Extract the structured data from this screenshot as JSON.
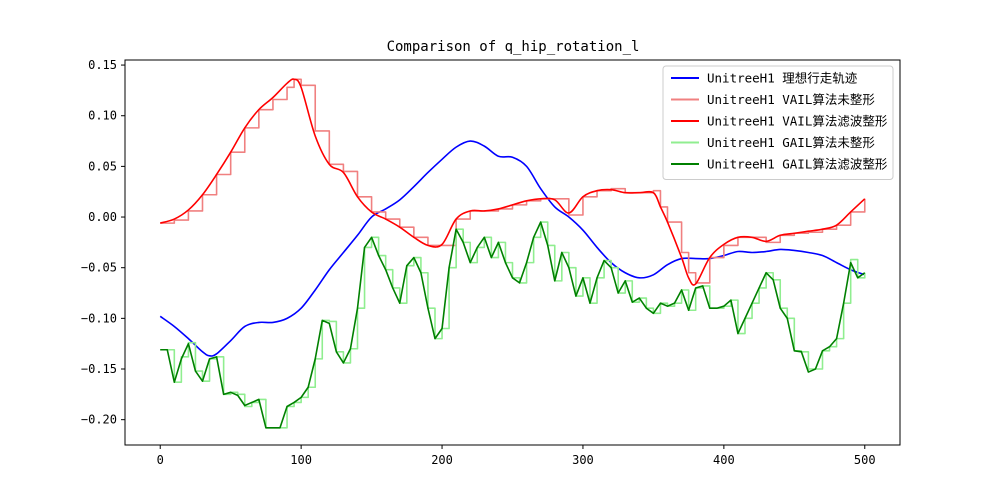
{
  "chart_data": {
    "type": "line",
    "title": "Comparison of q_hip_rotation_l",
    "xlabel": "",
    "ylabel": "",
    "xlim": [
      -25,
      525
    ],
    "ylim": [
      -0.225,
      0.155
    ],
    "xticks": [
      0,
      100,
      200,
      300,
      400,
      500
    ],
    "yticks": [
      0.15,
      0.1,
      0.05,
      0.0,
      -0.05,
      -0.1,
      -0.15,
      -0.2
    ],
    "ytick_labels": [
      "0.15",
      "0.10",
      "0.05",
      "0.00",
      "−0.05",
      "−0.10",
      "−0.15",
      "−0.20"
    ],
    "grid": false,
    "legend_position": "top-right",
    "series": [
      {
        "name": "UnitreeH1 理想行走轨迹",
        "color": "#0000ff",
        "style": "smooth",
        "x": [
          0,
          10,
          20,
          30,
          35,
          40,
          50,
          60,
          70,
          80,
          90,
          100,
          110,
          120,
          130,
          140,
          150,
          160,
          170,
          180,
          190,
          200,
          210,
          220,
          230,
          240,
          250,
          260,
          270,
          280,
          290,
          300,
          310,
          320,
          330,
          340,
          350,
          360,
          370,
          380,
          390,
          400,
          410,
          420,
          430,
          440,
          450,
          460,
          470,
          480,
          490,
          500
        ],
        "y": [
          -0.098,
          -0.108,
          -0.12,
          -0.133,
          -0.137,
          -0.135,
          -0.122,
          -0.108,
          -0.104,
          -0.104,
          -0.1,
          -0.09,
          -0.072,
          -0.052,
          -0.035,
          -0.018,
          0.0,
          0.008,
          0.017,
          0.03,
          0.044,
          0.057,
          0.069,
          0.075,
          0.07,
          0.06,
          0.059,
          0.05,
          0.028,
          0.01,
          0.0,
          -0.013,
          -0.03,
          -0.045,
          -0.055,
          -0.06,
          -0.057,
          -0.047,
          -0.041,
          -0.041,
          -0.041,
          -0.038,
          -0.034,
          -0.035,
          -0.034,
          -0.032,
          -0.033,
          -0.035,
          -0.038,
          -0.045,
          -0.052,
          -0.057
        ]
      },
      {
        "name": "UnitreeH1 VAIL算法未整形",
        "color": "#f08080",
        "style": "steps",
        "x": [
          0,
          10,
          20,
          30,
          40,
          50,
          60,
          70,
          80,
          90,
          95,
          100,
          110,
          120,
          130,
          140,
          150,
          160,
          170,
          180,
          190,
          200,
          210,
          220,
          230,
          240,
          250,
          260,
          270,
          280,
          290,
          300,
          310,
          320,
          330,
          340,
          350,
          355,
          360,
          370,
          375,
          380,
          390,
          400,
          410,
          420,
          430,
          440,
          450,
          460,
          470,
          480,
          490,
          500
        ],
        "y": [
          -0.006,
          -0.003,
          0.006,
          0.022,
          0.042,
          0.064,
          0.088,
          0.106,
          0.116,
          0.128,
          0.136,
          0.13,
          0.085,
          0.052,
          0.045,
          0.02,
          0.005,
          -0.002,
          -0.01,
          -0.02,
          -0.028,
          -0.028,
          -0.002,
          0.006,
          0.006,
          0.008,
          0.012,
          0.016,
          0.018,
          0.018,
          0.002,
          0.02,
          0.026,
          0.028,
          0.024,
          0.024,
          0.026,
          0.01,
          -0.005,
          -0.035,
          -0.055,
          -0.065,
          -0.04,
          -0.028,
          -0.02,
          -0.02,
          -0.025,
          -0.018,
          -0.016,
          -0.015,
          -0.012,
          -0.008,
          0.005,
          0.018
        ]
      },
      {
        "name": "UnitreeH1 VAIL算法滤波整形",
        "color": "#ff0000",
        "style": "smooth",
        "x": [
          0,
          10,
          20,
          30,
          40,
          50,
          60,
          70,
          80,
          90,
          95,
          100,
          110,
          120,
          130,
          140,
          150,
          160,
          170,
          180,
          190,
          200,
          210,
          220,
          230,
          240,
          250,
          260,
          270,
          280,
          290,
          300,
          310,
          320,
          330,
          340,
          350,
          355,
          360,
          370,
          375,
          380,
          390,
          400,
          410,
          420,
          430,
          440,
          450,
          460,
          470,
          480,
          490,
          500
        ],
        "y": [
          -0.006,
          -0.002,
          0.007,
          0.022,
          0.042,
          0.064,
          0.088,
          0.106,
          0.118,
          0.132,
          0.136,
          0.128,
          0.08,
          0.052,
          0.044,
          0.02,
          0.005,
          -0.002,
          -0.01,
          -0.02,
          -0.028,
          -0.027,
          -0.002,
          0.006,
          0.006,
          0.008,
          0.012,
          0.016,
          0.018,
          0.017,
          0.004,
          0.02,
          0.026,
          0.027,
          0.024,
          0.024,
          0.024,
          0.01,
          -0.005,
          -0.04,
          -0.06,
          -0.066,
          -0.04,
          -0.027,
          -0.02,
          -0.02,
          -0.024,
          -0.018,
          -0.016,
          -0.014,
          -0.012,
          -0.008,
          0.005,
          0.018
        ]
      },
      {
        "name": "UnitreeH1 GAIL算法未整形",
        "color": "#90ee90",
        "style": "steps",
        "x": [
          0,
          5,
          10,
          15,
          20,
          25,
          30,
          35,
          40,
          45,
          50,
          55,
          60,
          65,
          70,
          75,
          80,
          85,
          90,
          95,
          100,
          105,
          110,
          115,
          120,
          125,
          130,
          135,
          140,
          145,
          150,
          155,
          160,
          165,
          170,
          175,
          180,
          185,
          190,
          195,
          200,
          205,
          210,
          215,
          220,
          225,
          230,
          235,
          240,
          245,
          250,
          255,
          260,
          265,
          270,
          275,
          280,
          285,
          290,
          295,
          300,
          305,
          310,
          315,
          320,
          325,
          330,
          335,
          340,
          345,
          350,
          355,
          360,
          365,
          370,
          375,
          380,
          385,
          390,
          395,
          400,
          405,
          410,
          415,
          420,
          425,
          430,
          435,
          440,
          445,
          450,
          455,
          460,
          465,
          470,
          475,
          480,
          485,
          490,
          495,
          500
        ],
        "y": [
          -0.131,
          -0.131,
          -0.163,
          -0.138,
          -0.124,
          -0.152,
          -0.162,
          -0.14,
          -0.138,
          -0.175,
          -0.173,
          -0.175,
          -0.187,
          -0.183,
          -0.18,
          -0.208,
          -0.208,
          -0.208,
          -0.187,
          -0.183,
          -0.178,
          -0.168,
          -0.14,
          -0.102,
          -0.103,
          -0.133,
          -0.144,
          -0.13,
          -0.09,
          -0.03,
          -0.02,
          -0.038,
          -0.052,
          -0.07,
          -0.085,
          -0.048,
          -0.04,
          -0.055,
          -0.09,
          -0.12,
          -0.11,
          -0.05,
          -0.012,
          -0.025,
          -0.045,
          -0.03,
          -0.02,
          -0.04,
          -0.025,
          -0.045,
          -0.06,
          -0.065,
          -0.045,
          -0.02,
          -0.005,
          -0.028,
          -0.063,
          -0.035,
          -0.05,
          -0.078,
          -0.06,
          -0.085,
          -0.06,
          -0.043,
          -0.05,
          -0.075,
          -0.063,
          -0.084,
          -0.08,
          -0.09,
          -0.095,
          -0.085,
          -0.088,
          -0.085,
          -0.072,
          -0.092,
          -0.07,
          -0.068,
          -0.09,
          -0.09,
          -0.088,
          -0.082,
          -0.115,
          -0.1,
          -0.085,
          -0.07,
          -0.055,
          -0.062,
          -0.09,
          -0.1,
          -0.132,
          -0.133,
          -0.15,
          -0.15,
          -0.132,
          -0.128,
          -0.12,
          -0.085,
          -0.042,
          -0.06,
          -0.055
        ]
      },
      {
        "name": "UnitreeH1 GAIL算法滤波整形",
        "color": "#008000",
        "style": "line",
        "x": [
          0,
          5,
          10,
          15,
          20,
          25,
          30,
          35,
          40,
          45,
          50,
          55,
          60,
          65,
          70,
          75,
          80,
          85,
          90,
          95,
          100,
          105,
          110,
          115,
          120,
          125,
          130,
          135,
          140,
          145,
          150,
          155,
          160,
          165,
          170,
          175,
          180,
          185,
          190,
          195,
          200,
          205,
          210,
          215,
          220,
          225,
          230,
          235,
          240,
          245,
          250,
          255,
          260,
          265,
          270,
          275,
          280,
          285,
          290,
          295,
          300,
          305,
          310,
          315,
          320,
          325,
          330,
          335,
          340,
          345,
          350,
          355,
          360,
          365,
          370,
          375,
          380,
          385,
          390,
          395,
          400,
          405,
          410,
          415,
          420,
          425,
          430,
          435,
          440,
          445,
          450,
          455,
          460,
          465,
          470,
          475,
          480,
          485,
          490,
          495,
          500
        ],
        "y": [
          -0.131,
          -0.131,
          -0.163,
          -0.14,
          -0.125,
          -0.152,
          -0.162,
          -0.14,
          -0.138,
          -0.175,
          -0.173,
          -0.176,
          -0.186,
          -0.183,
          -0.18,
          -0.208,
          -0.208,
          -0.208,
          -0.187,
          -0.183,
          -0.178,
          -0.168,
          -0.14,
          -0.102,
          -0.105,
          -0.133,
          -0.144,
          -0.13,
          -0.09,
          -0.03,
          -0.02,
          -0.038,
          -0.052,
          -0.07,
          -0.085,
          -0.048,
          -0.04,
          -0.055,
          -0.09,
          -0.12,
          -0.11,
          -0.05,
          -0.012,
          -0.025,
          -0.045,
          -0.03,
          -0.02,
          -0.04,
          -0.025,
          -0.045,
          -0.06,
          -0.065,
          -0.045,
          -0.02,
          -0.005,
          -0.028,
          -0.063,
          -0.035,
          -0.05,
          -0.078,
          -0.06,
          -0.085,
          -0.06,
          -0.043,
          -0.05,
          -0.075,
          -0.063,
          -0.084,
          -0.08,
          -0.09,
          -0.095,
          -0.085,
          -0.088,
          -0.085,
          -0.072,
          -0.092,
          -0.07,
          -0.068,
          -0.09,
          -0.09,
          -0.088,
          -0.082,
          -0.115,
          -0.1,
          -0.085,
          -0.07,
          -0.055,
          -0.062,
          -0.09,
          -0.1,
          -0.132,
          -0.133,
          -0.153,
          -0.15,
          -0.132,
          -0.128,
          -0.12,
          -0.085,
          -0.045,
          -0.06,
          -0.055
        ]
      }
    ]
  }
}
